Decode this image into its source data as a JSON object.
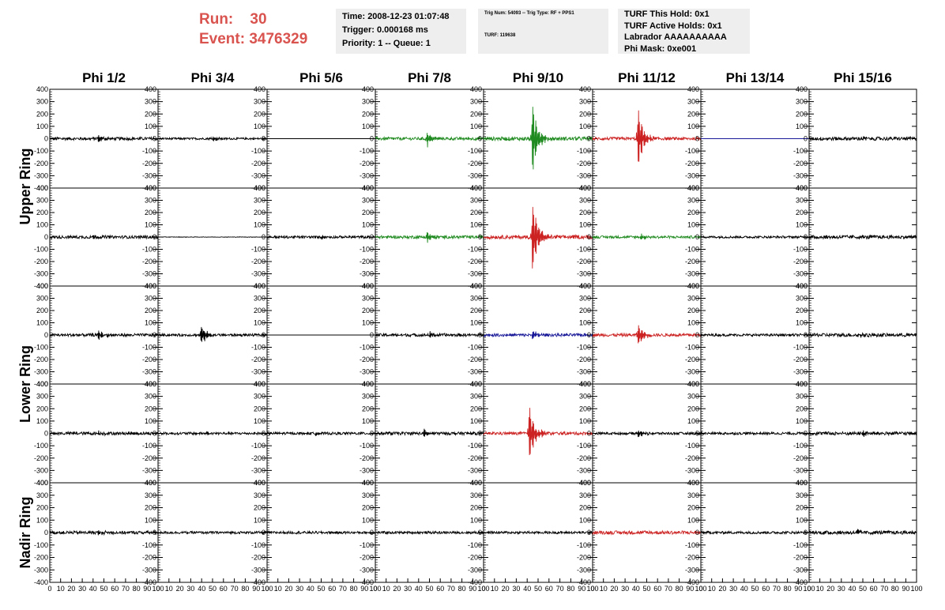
{
  "header": {
    "run_label": "Run:    30",
    "event_label": "Event: 3476329"
  },
  "info_time": {
    "time": "Time: 2008-12-23 01:07:48",
    "trigger": "Trigger: 0.000168 ms",
    "priority": "Priority: 1 -- Queue: 1"
  },
  "info_trig": {
    "trig": "Trig Num: 54093 -- Trig Type: RF + PPS1",
    "turf": "TURF: 119638"
  },
  "info_turf": {
    "hold": "TURF This Hold: 0x1",
    "active": "TURF Active Holds: 0x1",
    "labrador": "Labrador AAAAAAAAAA",
    "mask": "Phi Mask: 0xe001"
  },
  "colors": {
    "black": "#000000",
    "green": "#1f8a1f",
    "red": "#cc2222",
    "blue": "#1a1a99"
  },
  "chart_data": {
    "type": "line",
    "columns": [
      "Phi 1/2",
      "Phi 3/4",
      "Phi 5/6",
      "Phi 7/8",
      "Phi 9/10",
      "Phi 11/12",
      "Phi 13/14",
      "Phi 15/16"
    ],
    "ring_labels": [
      "Upper Ring",
      "Lower Ring",
      "Nadir Ring"
    ],
    "ylim": [
      -400,
      400
    ],
    "xlim": [
      0,
      100
    ],
    "y_ticks": [
      -400,
      -300,
      -200,
      -100,
      0,
      100,
      200,
      300,
      400
    ],
    "x_tick_labels": [
      "0",
      "10",
      "20",
      "30",
      "40",
      "50",
      "60",
      "70",
      "80",
      "90",
      "100"
    ],
    "panels": [
      [
        {
          "color": "black",
          "noise": 12,
          "burst_amp": 45,
          "burst_center": 45
        },
        {
          "color": "black",
          "noise": 8,
          "burst_amp": 25,
          "burst_center": 50
        },
        {
          "color": "black",
          "noise": 0,
          "burst_amp": 0,
          "burst_center": 50
        },
        {
          "color": "green",
          "noise": 12,
          "burst_amp": 70,
          "burst_center": 48
        },
        {
          "color": "green",
          "noise": 15,
          "burst_amp": 320,
          "burst_center": 45
        },
        {
          "color": "red",
          "noise": 12,
          "burst_amp": 280,
          "burst_center": 42
        },
        {
          "color": "blue",
          "noise": 0,
          "burst_amp": 0,
          "burst_center": 50
        },
        {
          "color": "black",
          "noise": 14,
          "burst_amp": 20,
          "burst_center": 50
        }
      ],
      [
        {
          "color": "black",
          "noise": 12,
          "burst_amp": 20,
          "burst_center": 40
        },
        {
          "color": "black",
          "noise": 2,
          "burst_amp": 0,
          "burst_center": 50
        },
        {
          "color": "black",
          "noise": 10,
          "burst_amp": 15,
          "burst_center": 50
        },
        {
          "color": "green",
          "noise": 12,
          "burst_amp": 60,
          "burst_center": 48
        },
        {
          "color": "red",
          "noise": 15,
          "burst_amp": 350,
          "burst_center": 45
        },
        {
          "color": "green",
          "noise": 10,
          "burst_amp": 30,
          "burst_center": 45
        },
        {
          "color": "black",
          "noise": 9,
          "burst_amp": 0,
          "burst_center": 50
        },
        {
          "color": "black",
          "noise": 14,
          "burst_amp": 20,
          "burst_center": 50
        }
      ],
      [
        {
          "color": "black",
          "noise": 12,
          "burst_amp": 40,
          "burst_center": 45
        },
        {
          "color": "black",
          "noise": 10,
          "burst_amp": 90,
          "burst_center": 40
        },
        {
          "color": "black",
          "noise": 0,
          "burst_amp": 0,
          "burst_center": 50
        },
        {
          "color": "black",
          "noise": 12,
          "burst_amp": 25,
          "burst_center": 50
        },
        {
          "color": "blue",
          "noise": 12,
          "burst_amp": 40,
          "burst_center": 45
        },
        {
          "color": "red",
          "noise": 12,
          "burst_amp": 100,
          "burst_center": 42
        },
        {
          "color": "black",
          "noise": 10,
          "burst_amp": 0,
          "burst_center": 50
        },
        {
          "color": "black",
          "noise": 14,
          "burst_amp": 25,
          "burst_center": 45
        }
      ],
      [
        {
          "color": "black",
          "noise": 12,
          "burst_amp": 20,
          "burst_center": 45
        },
        {
          "color": "black",
          "noise": 10,
          "burst_amp": 15,
          "burst_center": 45
        },
        {
          "color": "black",
          "noise": 10,
          "burst_amp": 15,
          "burst_center": 45
        },
        {
          "color": "black",
          "noise": 12,
          "burst_amp": 45,
          "burst_center": 45
        },
        {
          "color": "red",
          "noise": 12,
          "burst_amp": 290,
          "burst_center": 42
        },
        {
          "color": "black",
          "noise": 10,
          "burst_amp": 45,
          "burst_center": 42
        },
        {
          "color": "black",
          "noise": 10,
          "burst_amp": 0,
          "burst_center": 50
        },
        {
          "color": "black",
          "noise": 14,
          "burst_amp": 25,
          "burst_center": 50
        }
      ],
      [
        {
          "color": "black",
          "noise": 12,
          "burst_amp": 20,
          "burst_center": 45
        },
        {
          "color": "black",
          "noise": 10,
          "burst_amp": 0,
          "burst_center": 50
        },
        {
          "color": "black",
          "noise": 10,
          "burst_amp": 0,
          "burst_center": 50
        },
        {
          "color": "black",
          "noise": 10,
          "burst_amp": 0,
          "burst_center": 50
        },
        {
          "color": "black",
          "noise": 10,
          "burst_amp": 0,
          "burst_center": 50
        },
        {
          "color": "red",
          "noise": 14,
          "burst_amp": 15,
          "burst_center": 50
        },
        {
          "color": "black",
          "noise": 10,
          "burst_amp": 0,
          "burst_center": 50
        },
        {
          "color": "black",
          "noise": 14,
          "burst_amp": 25,
          "burst_center": 45
        }
      ]
    ]
  }
}
